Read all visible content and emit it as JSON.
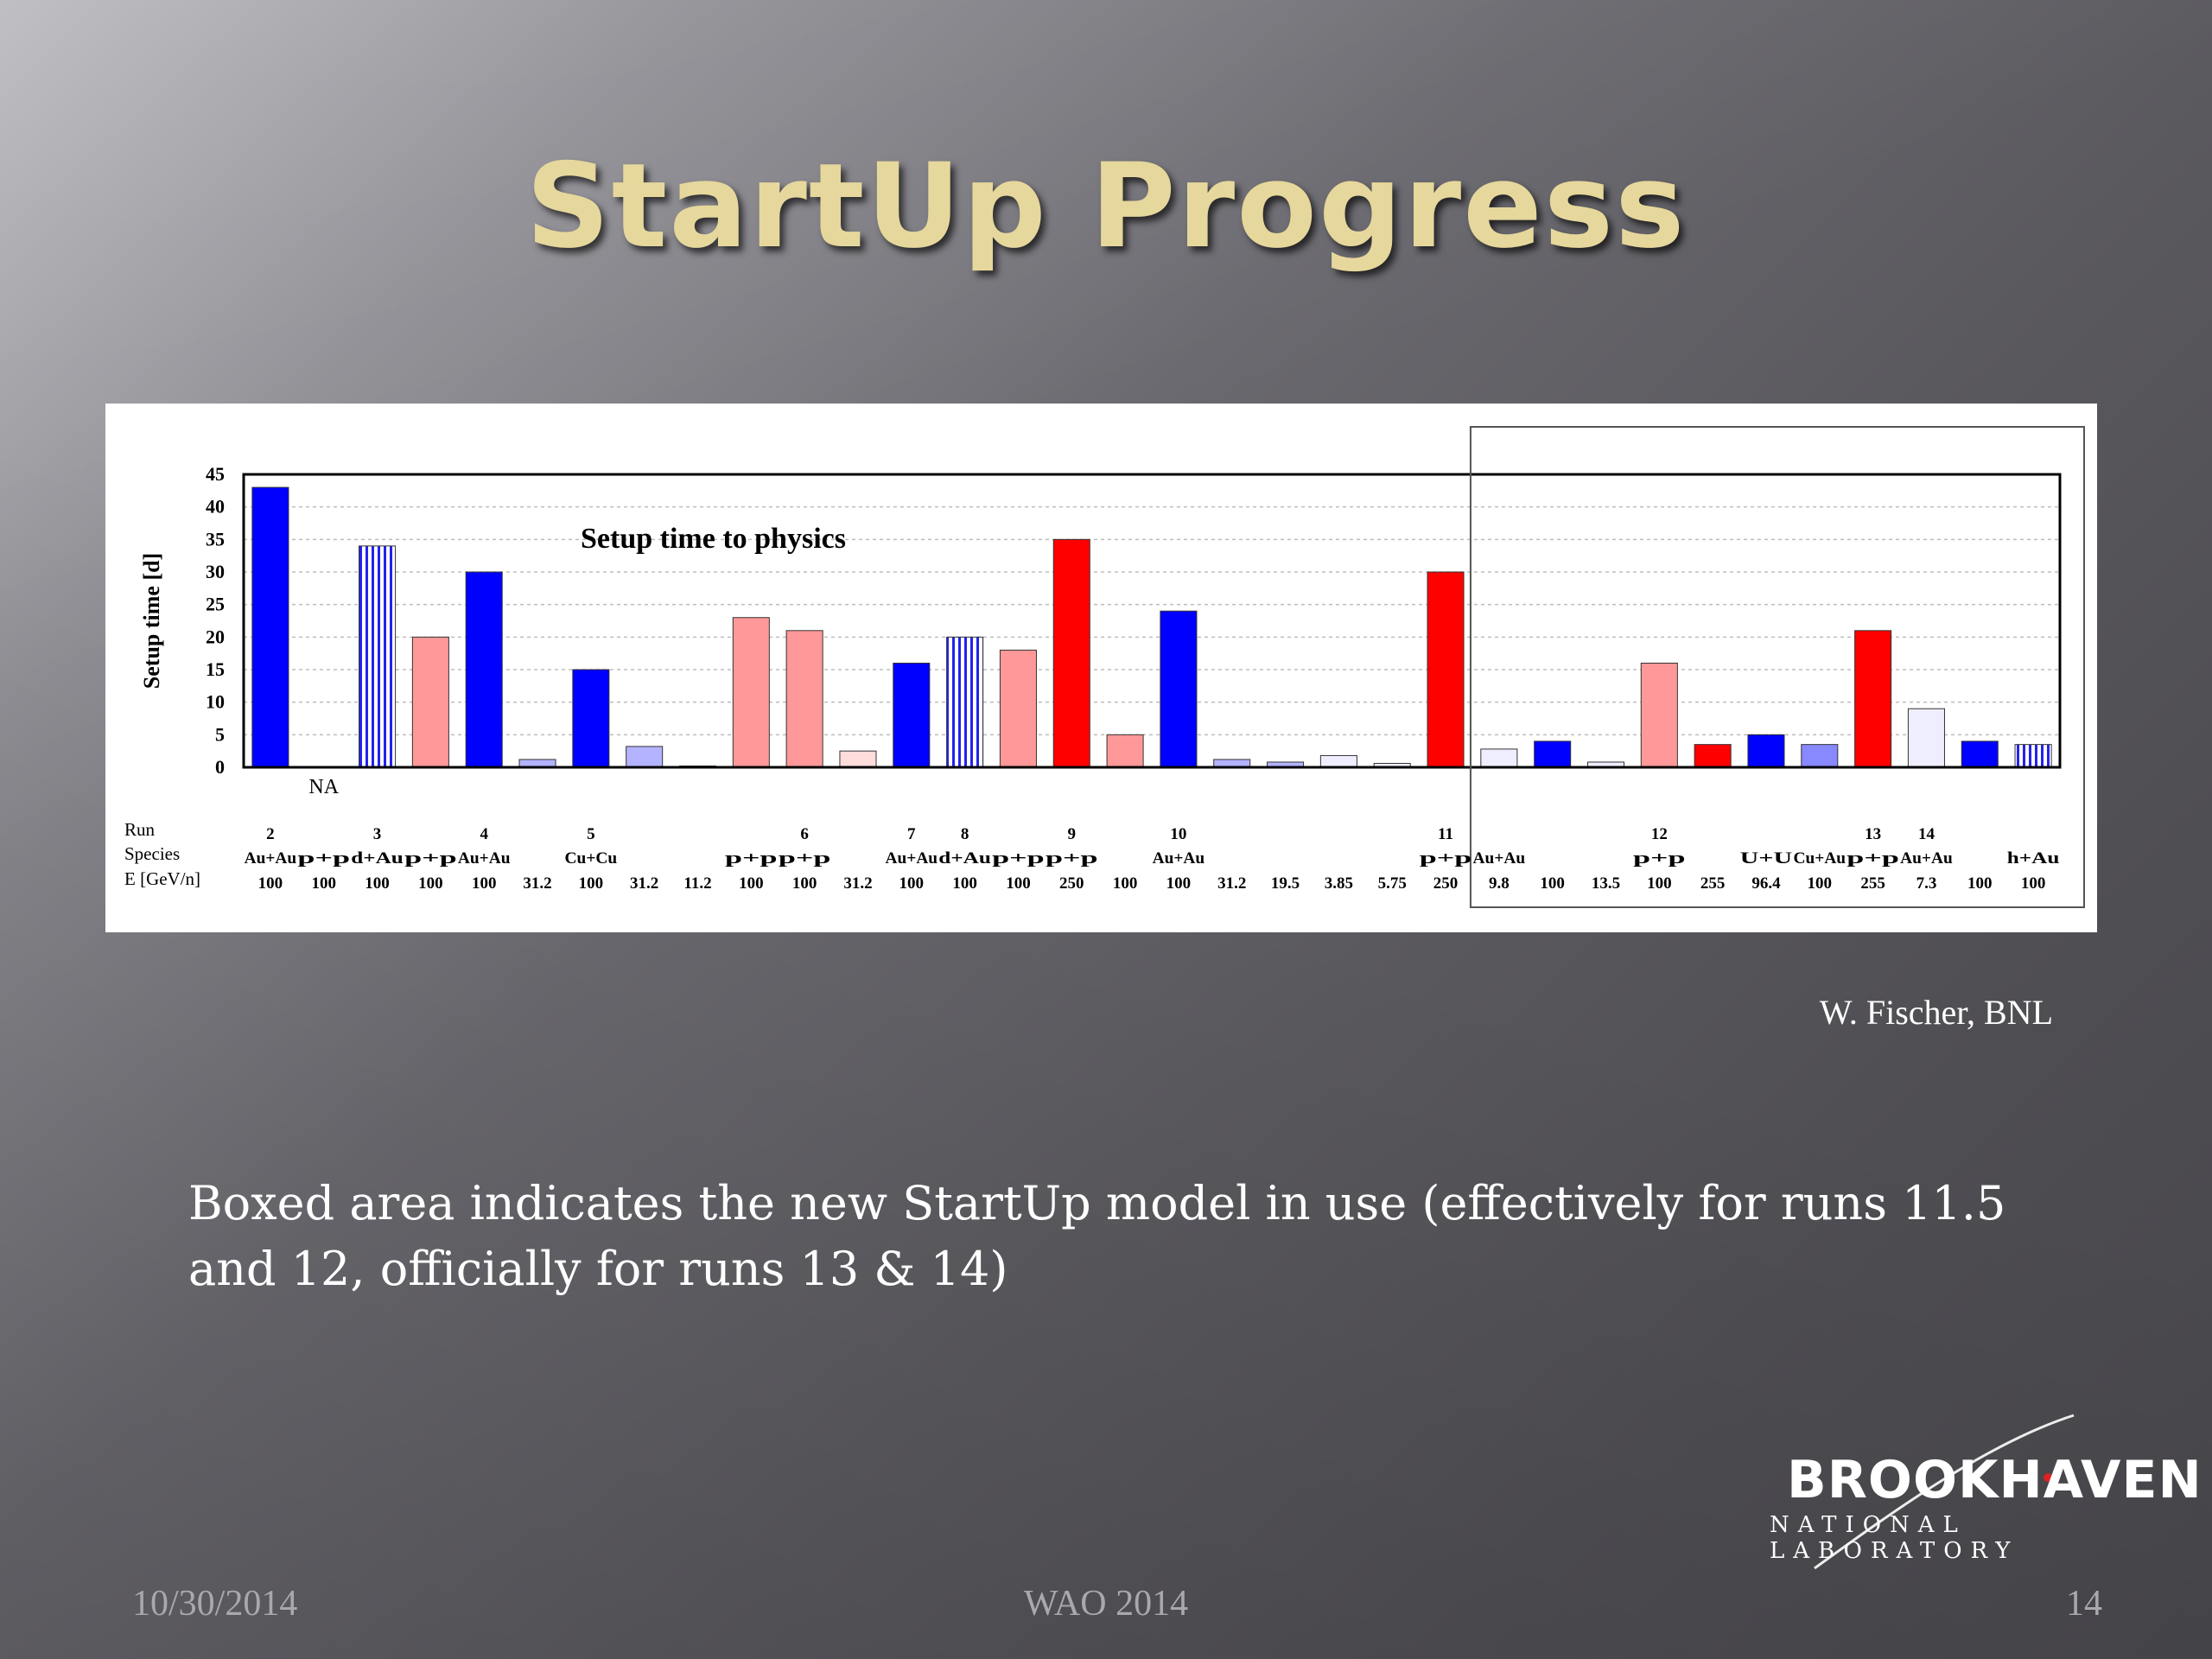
{
  "slide": {
    "title": "StartUp Progress",
    "credit": "W. Fischer, BNL",
    "caption": "Boxed area indicates the new StartUp model in use (effectively for runs 11.5 and 12, officially for runs 13 & 14)",
    "footer": {
      "date": "10/30/2014",
      "event": "WAO 2014",
      "page": "14"
    },
    "logo": {
      "name": "BROOKHAVEN",
      "subtitle": "NATIONAL LABORATORY"
    }
  },
  "colors": {
    "au_au": "#0000ff",
    "p_p": "#ff9999",
    "p_p_high_energy": "#ff0000",
    "light_blue": "#b3b3ff",
    "pale": "#eeeeff",
    "pale_pink": "#ffdddd"
  },
  "chart_data": {
    "type": "bar",
    "title": "Setup time to physics",
    "ylabel": "Setup time [d]",
    "ylim": [
      0,
      45
    ],
    "yticks": [
      0,
      5,
      10,
      15,
      20,
      25,
      30,
      35,
      40,
      45
    ],
    "grid": true,
    "row_labels": [
      "Run",
      "Species",
      "E [GeV/n]"
    ],
    "na_label": "NA",
    "boxed_from_index": 23,
    "bars": [
      {
        "run": "2",
        "species": "Au+Au",
        "energy": "100",
        "value": 43,
        "color": "#0000ff",
        "hatch": false
      },
      {
        "run": "",
        "species": "p+p",
        "energy": "100",
        "value": 0,
        "color": "#ff9999",
        "hatch": false,
        "na": true
      },
      {
        "run": "3",
        "species": "d+Au",
        "energy": "100",
        "value": 34,
        "color": "#0000ff",
        "hatch": true
      },
      {
        "run": "",
        "species": "p+p",
        "energy": "100",
        "value": 20,
        "color": "#ff9999",
        "hatch": false
      },
      {
        "run": "4",
        "species": "Au+Au",
        "energy": "100",
        "value": 30,
        "color": "#0000ff",
        "hatch": false
      },
      {
        "run": "",
        "species": "",
        "energy": "31.2",
        "value": 1.2,
        "color": "#b3b3ff",
        "hatch": false
      },
      {
        "run": "5",
        "species": "Cu+Cu",
        "energy": "100",
        "value": 15,
        "color": "#0000ff",
        "hatch": false
      },
      {
        "run": "",
        "species": "",
        "energy": "31.2",
        "value": 3.2,
        "color": "#b3b3ff",
        "hatch": false
      },
      {
        "run": "",
        "species": "",
        "energy": "11.2",
        "value": 0.2,
        "color": "#b3b3ff",
        "hatch": false
      },
      {
        "run": "",
        "species": "p+p",
        "energy": "100",
        "value": 23,
        "color": "#ff9999",
        "hatch": false
      },
      {
        "run": "6",
        "species": "p+p",
        "energy": "100",
        "value": 21,
        "color": "#ff9999",
        "hatch": false
      },
      {
        "run": "",
        "species": "",
        "energy": "31.2",
        "value": 2.5,
        "color": "#ffdddd",
        "hatch": false
      },
      {
        "run": "7",
        "species": "Au+Au",
        "energy": "100",
        "value": 16,
        "color": "#0000ff",
        "hatch": false
      },
      {
        "run": "8",
        "species": "d+Au",
        "energy": "100",
        "value": 20,
        "color": "#0000ff",
        "hatch": true
      },
      {
        "run": "",
        "species": "p+p",
        "energy": "100",
        "value": 18,
        "color": "#ff9999",
        "hatch": false
      },
      {
        "run": "9",
        "species": "p+p",
        "energy": "250",
        "value": 35,
        "color": "#ff0000",
        "hatch": false
      },
      {
        "run": "",
        "species": "",
        "energy": "100",
        "value": 5,
        "color": "#ff9999",
        "hatch": false
      },
      {
        "run": "10",
        "species": "Au+Au",
        "energy": "100",
        "value": 24,
        "color": "#0000ff",
        "hatch": false
      },
      {
        "run": "",
        "species": "",
        "energy": "31.2",
        "value": 1.2,
        "color": "#b3b3ff",
        "hatch": false
      },
      {
        "run": "",
        "species": "",
        "energy": "19.5",
        "value": 0.8,
        "color": "#b3b3ff",
        "hatch": false
      },
      {
        "run": "",
        "species": "",
        "energy": "3.85",
        "value": 1.8,
        "color": "#eeeeff",
        "hatch": false
      },
      {
        "run": "",
        "species": "",
        "energy": "5.75",
        "value": 0.6,
        "color": "#eeeeff",
        "hatch": false
      },
      {
        "run": "11",
        "species": "p+p",
        "energy": "250",
        "value": 30,
        "color": "#ff0000",
        "hatch": false
      },
      {
        "run": "",
        "species": "Au+Au",
        "energy": "9.8",
        "value": 2.8,
        "color": "#eeeeff",
        "hatch": false
      },
      {
        "run": "",
        "species": "",
        "energy": "100",
        "value": 4,
        "color": "#0000ff",
        "hatch": false
      },
      {
        "run": "",
        "species": "",
        "energy": "13.5",
        "value": 0.8,
        "color": "#eeeeff",
        "hatch": false
      },
      {
        "run": "12",
        "species": "p+p",
        "energy": "100",
        "value": 16,
        "color": "#ff9999",
        "hatch": false
      },
      {
        "run": "",
        "species": "",
        "energy": "255",
        "value": 3.5,
        "color": "#ff0000",
        "hatch": false
      },
      {
        "run": "",
        "species": "U+U",
        "energy": "96.4",
        "value": 5,
        "color": "#0000ff",
        "hatch": false
      },
      {
        "run": "",
        "species": "Cu+Au",
        "energy": "100",
        "value": 3.5,
        "color": "#8888ff",
        "hatch": false
      },
      {
        "run": "13",
        "species": "p+p",
        "energy": "255",
        "value": 21,
        "color": "#ff0000",
        "hatch": false
      },
      {
        "run": "14",
        "species": "Au+Au",
        "energy": "7.3",
        "value": 9,
        "color": "#eeeeff",
        "hatch": false
      },
      {
        "run": "",
        "species": "",
        "energy": "100",
        "value": 4,
        "color": "#0000ff",
        "hatch": false
      },
      {
        "run": "",
        "species": "h+Au",
        "energy": "100",
        "value": 3.5,
        "color": "#0000ff",
        "hatch": true
      }
    ]
  }
}
